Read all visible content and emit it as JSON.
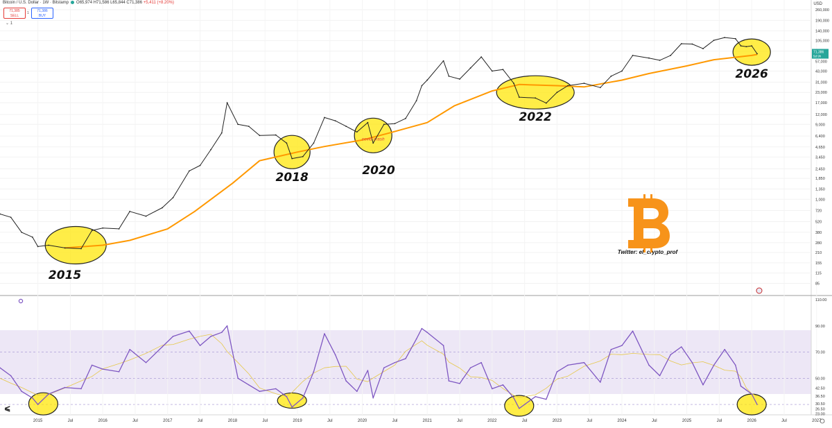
{
  "header": {
    "symbol": "Bitcoin / U.S. Dollar · 1W · Bitstamp",
    "ohlc": "O65,974 H71,586 L65,844 C71,386",
    "change": "+5,411 (+8.20%)"
  },
  "trade": {
    "sell_price": "71,385",
    "sell_label": "SELL",
    "spread": "1",
    "buy_price": "71,386",
    "buy_label": "BUY"
  },
  "indicator_toggle": "1",
  "currency": "USD",
  "price_badge": {
    "price": "71,386",
    "countdown": "5d 9h",
    "color": "#26a69a"
  },
  "annotations": {
    "twitter": "Twitter: el_crypto_prof",
    "covid": "covid crash",
    "years": [
      "2015",
      "2018",
      "2020",
      "2022",
      "2026"
    ]
  },
  "colors": {
    "price": "#222222",
    "ma": "#ff9800",
    "rsi": "#7e57c2",
    "rsi_ma": "#e6c84a",
    "highlight": "#ffe600",
    "btc_logo": "#f7931a",
    "rsi_band": "#ede7f6"
  },
  "chart_data": [
    {
      "type": "line",
      "title": "Bitcoin / U.S. Dollar · 1W · Bitstamp",
      "y_scale": "log",
      "ylim": [
        70,
        260000
      ],
      "xlim": [
        "2014-06",
        "2026-12"
      ],
      "y_ticks": [
        "260,000",
        "190,000",
        "140,000",
        "105,000",
        "77,000",
        "57,000",
        "43,000",
        "31,000",
        "23,000",
        "17,000",
        "12,000",
        "9,000",
        "6,400",
        "4,650",
        "3,450",
        "2,450",
        "1,850",
        "1,350",
        "1,000",
        "720",
        "520",
        "380",
        "280",
        "210",
        "155",
        "115",
        "85"
      ],
      "x_ticks": [
        "2015",
        "Jul",
        "2016",
        "Jul",
        "2017",
        "Jul",
        "2018",
        "Jul",
        "2019",
        "Jul",
        "2020",
        "Jul",
        "2021",
        "Jul",
        "2022",
        "Jul",
        "2023",
        "Jul",
        "2024",
        "Jul",
        "2025",
        "Jul",
        "2026",
        "Jul",
        "2027"
      ],
      "series": [
        {
          "name": "Price",
          "x": [
            "2014-06",
            "2014-08",
            "2014-10",
            "2014-12",
            "2015-01",
            "2015-03",
            "2015-06",
            "2015-09",
            "2015-11",
            "2016-01",
            "2016-04",
            "2016-06",
            "2016-09",
            "2016-12",
            "2017-02",
            "2017-05",
            "2017-07",
            "2017-09",
            "2017-11",
            "2017-12",
            "2018-02",
            "2018-04",
            "2018-06",
            "2018-09",
            "2018-11",
            "2018-12",
            "2019-02",
            "2019-04",
            "2019-06",
            "2019-08",
            "2019-10",
            "2019-12",
            "2020-02",
            "2020-03",
            "2020-05",
            "2020-07",
            "2020-09",
            "2020-11",
            "2020-12",
            "2021-01",
            "2021-04",
            "2021-05",
            "2021-07",
            "2021-09",
            "2021-11",
            "2022-01",
            "2022-03",
            "2022-05",
            "2022-06",
            "2022-09",
            "2022-11",
            "2023-01",
            "2023-03",
            "2023-06",
            "2023-09",
            "2023-11",
            "2024-01",
            "2024-03",
            "2024-06",
            "2024-08",
            "2024-10",
            "2024-12",
            "2025-02",
            "2025-04",
            "2025-06",
            "2025-08",
            "2025-10",
            "2025-11",
            "2025-12",
            "2026-01",
            "2026-02"
          ],
          "values": [
            650,
            590,
            380,
            330,
            250,
            260,
            240,
            235,
            400,
            430,
            420,
            700,
            610,
            780,
            1050,
            2300,
            2700,
            4300,
            7000,
            17000,
            9000,
            8500,
            6500,
            6600,
            5200,
            3300,
            3500,
            5200,
            11000,
            10000,
            8500,
            7200,
            9500,
            5200,
            9000,
            9200,
            10700,
            18000,
            28000,
            33000,
            58000,
            37000,
            34000,
            47000,
            65000,
            43000,
            45000,
            30000,
            20000,
            19500,
            16800,
            23000,
            28000,
            30000,
            26500,
            37000,
            43000,
            68000,
            63000,
            59000,
            68000,
            96000,
            95000,
            83000,
            106000,
            115000,
            111000,
            90000,
            88000,
            90000,
            71386
          ]
        },
        {
          "name": "MA",
          "x": [
            "2015-06",
            "2016-01",
            "2016-06",
            "2017-01",
            "2017-06",
            "2018-01",
            "2018-06",
            "2019-01",
            "2019-06",
            "2020-01",
            "2020-06",
            "2021-01",
            "2021-06",
            "2022-01",
            "2022-06",
            "2023-01",
            "2023-06",
            "2024-01",
            "2024-06",
            "2025-01",
            "2025-06",
            "2026-01",
            "2026-02"
          ],
          "values": [
            240,
            260,
            300,
            420,
            700,
            1600,
            3100,
            4000,
            4700,
            5700,
            7000,
            9500,
            15500,
            24000,
            29000,
            28000,
            27000,
            33000,
            40000,
            50000,
            60000,
            68000,
            70000
          ]
        }
      ]
    },
    {
      "type": "line",
      "title": "RSI",
      "ylim": [
        20,
        110
      ],
      "y_ticks": [
        "110.00",
        "90.00",
        "70.00",
        "50.00",
        "42.50",
        "36.50",
        "30.50",
        "26.50",
        "23.00"
      ],
      "bands": [
        30,
        50,
        70
      ],
      "series": [
        {
          "name": "RSI",
          "x": [
            "2014-06",
            "2014-08",
            "2014-10",
            "2014-12",
            "2015-01",
            "2015-03",
            "2015-06",
            "2015-09",
            "2015-11",
            "2016-01",
            "2016-04",
            "2016-06",
            "2016-09",
            "2016-12",
            "2017-02",
            "2017-05",
            "2017-07",
            "2017-09",
            "2017-11",
            "2017-12",
            "2018-02",
            "2018-04",
            "2018-06",
            "2018-09",
            "2018-11",
            "2018-12",
            "2019-02",
            "2019-04",
            "2019-06",
            "2019-08",
            "2019-10",
            "2019-12",
            "2020-02",
            "2020-03",
            "2020-05",
            "2020-07",
            "2020-09",
            "2020-11",
            "2020-12",
            "2021-01",
            "2021-04",
            "2021-05",
            "2021-07",
            "2021-09",
            "2021-11",
            "2022-01",
            "2022-03",
            "2022-05",
            "2022-06",
            "2022-09",
            "2022-11",
            "2023-01",
            "2023-03",
            "2023-06",
            "2023-09",
            "2023-11",
            "2024-01",
            "2024-03",
            "2024-06",
            "2024-08",
            "2024-10",
            "2024-12",
            "2025-02",
            "2025-04",
            "2025-06",
            "2025-08",
            "2025-10",
            "2025-11",
            "2025-12",
            "2026-01",
            "2026-02"
          ],
          "values": [
            58,
            52,
            40,
            35,
            30,
            38,
            43,
            42,
            60,
            57,
            55,
            72,
            62,
            74,
            82,
            86,
            75,
            82,
            85,
            90,
            50,
            45,
            40,
            42,
            36,
            28,
            35,
            55,
            84,
            68,
            48,
            40,
            56,
            35,
            58,
            62,
            65,
            80,
            88,
            85,
            75,
            48,
            46,
            58,
            62,
            42,
            45,
            35,
            27,
            36,
            34,
            55,
            60,
            62,
            47,
            72,
            75,
            86,
            60,
            52,
            68,
            74,
            62,
            45,
            60,
            72,
            60,
            44,
            41,
            38,
            30
          ]
        }
      ]
    }
  ]
}
